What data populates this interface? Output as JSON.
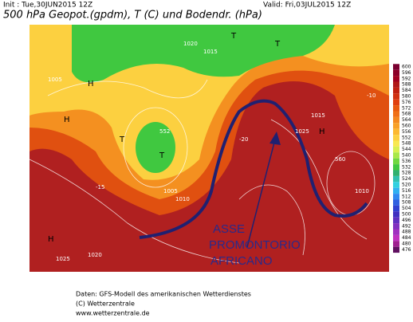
{
  "header": {
    "init": "Init : Tue,30JUN2015 12Z",
    "valid": "Valid: Fri,03JUL2015 12Z",
    "title": "500 hPa Geopot.(gpdm), T (C) und Bodendr. (hPa)"
  },
  "colorbar": {
    "labels": [
      600,
      596,
      592,
      588,
      584,
      580,
      576,
      572,
      568,
      564,
      560,
      556,
      552,
      548,
      544,
      540,
      536,
      532,
      528,
      524,
      520,
      516,
      512,
      508,
      504,
      500,
      496,
      492,
      488,
      484,
      480,
      476
    ],
    "colors": [
      "#7a0030",
      "#8c0028",
      "#a00020",
      "#b01818",
      "#c02010",
      "#d03010",
      "#e04010",
      "#e85a10",
      "#f07018",
      "#f48820",
      "#f8a028",
      "#fcb830",
      "#fcd040",
      "#f8e850",
      "#d8f050",
      "#a8e848",
      "#70d840",
      "#40c840",
      "#30b070",
      "#30c0b0",
      "#30d0e0",
      "#30b0f0",
      "#3088f0",
      "#3060e0",
      "#3040d0",
      "#4030c0",
      "#6030c0",
      "#8030c0",
      "#a030c0",
      "#c030c0",
      "#a02090",
      "#601060"
    ]
  },
  "map": {
    "labels": [
      "H",
      "H",
      "H",
      "T",
      "T",
      "T",
      "T",
      "H",
      "1005",
      "1010",
      "1015",
      "1020",
      "1015",
      "1025",
      "1010",
      "1005",
      "1020",
      "1025",
      "552",
      "560",
      "-15",
      "-20",
      "-10"
    ],
    "annotation": [
      "ASSE",
      "PROMONTORIO",
      "AFRICANO"
    ]
  },
  "footer": {
    "lines": [
      "Daten: GFS-Modell des amerikanischen Wetterdienstes",
      "(C) Wetterzentrale",
      "www.wetterzentrale.de"
    ]
  }
}
